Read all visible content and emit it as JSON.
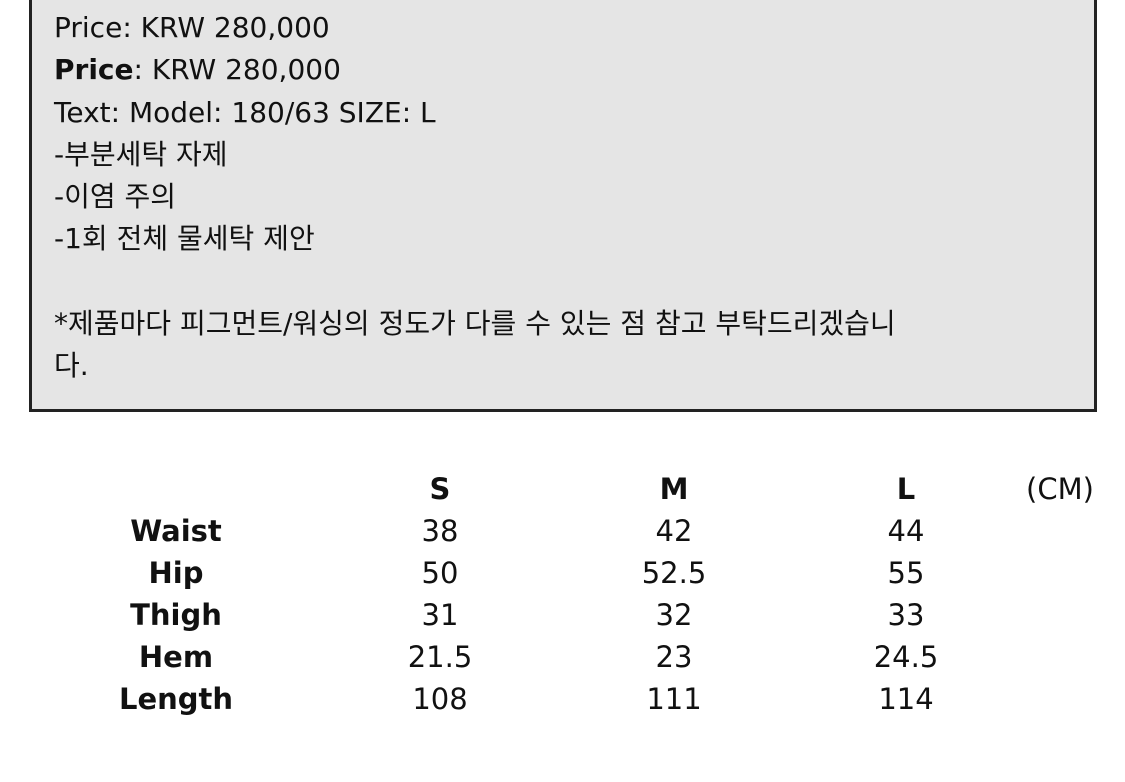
{
  "info_box": {
    "lines": [
      {
        "label": "Price",
        "text": ": KRW 280,000",
        "bold_label": false
      },
      {
        "label": "Price",
        "text": ": KRW 280,000",
        "bold_label": true
      },
      {
        "label": "Text",
        "text": ": Model: 180/63 SIZE: L",
        "bold_label": false
      }
    ],
    "notes": [
      "-부분세탁 자제",
      "-이염 주의",
      "-1회 전체 물세탁 제안"
    ],
    "disclaimer_line1": "*제품마다 피그먼트/워싱의 정도가 다를 수 있는 점 참고 부탁드리겠습니",
    "disclaimer_line2": "다."
  },
  "size_table": {
    "unit": "(CM)",
    "columns": [
      "S",
      "M",
      "L"
    ],
    "rows": [
      {
        "label": "Waist",
        "values": [
          "38",
          "42",
          "44"
        ]
      },
      {
        "label": "Hip",
        "values": [
          "50",
          "52.5",
          "55"
        ]
      },
      {
        "label": "Thigh",
        "values": [
          "31",
          "32",
          "33"
        ]
      },
      {
        "label": "Hem",
        "values": [
          "21.5",
          "23",
          "24.5"
        ]
      },
      {
        "label": "Length",
        "values": [
          "108",
          "111",
          "114"
        ]
      }
    ]
  }
}
